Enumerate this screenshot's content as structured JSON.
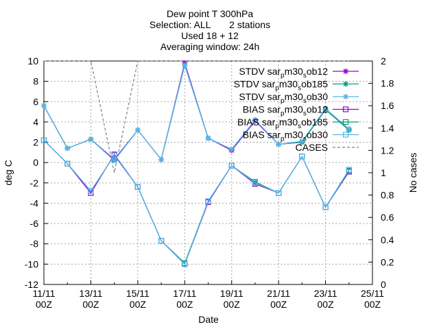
{
  "chart_data": {
    "type": "line",
    "title_lines": [
      "Dew point T 300hPa",
      "Selection: ALL       2 stations",
      "Used 18 + 12",
      "Averaging window: 24h"
    ],
    "xlabel": "Date",
    "ylabel": "deg C",
    "y2label": "No cases",
    "xlim": [
      0,
      14
    ],
    "ylim": [
      -12,
      10
    ],
    "y2lim": [
      0,
      2
    ],
    "grid": true,
    "legend_position": "top-right",
    "x_tick_labels": [
      {
        "at": 0,
        "line1": "11/11",
        "line2": "00Z"
      },
      {
        "at": 2,
        "line1": "13/11",
        "line2": "00Z"
      },
      {
        "at": 4,
        "line1": "15/11",
        "line2": "00Z"
      },
      {
        "at": 6,
        "line1": "17/11",
        "line2": "00Z"
      },
      {
        "at": 8,
        "line1": "19/11",
        "line2": "00Z"
      },
      {
        "at": 10,
        "line1": "21/11",
        "line2": "00Z"
      },
      {
        "at": 12,
        "line1": "23/11",
        "line2": "00Z"
      },
      {
        "at": 14,
        "line1": "25/11",
        "line2": "00Z"
      }
    ],
    "y_ticks": [
      10,
      8,
      6,
      4,
      2,
      0,
      -2,
      -4,
      -6,
      -8,
      -10,
      -12
    ],
    "y2_ticks": [
      "2",
      "1.8",
      "1.6",
      "1.4",
      "1.2",
      "1",
      "0.8",
      "0.6",
      "0.4",
      "0.2",
      "0"
    ],
    "x": [
      0,
      1,
      2,
      3,
      4,
      5,
      6,
      7,
      8,
      9,
      10,
      11,
      12,
      13
    ],
    "series": [
      {
        "name": "STDV sar_p m30_s ob12",
        "label_parts": [
          "STDV sar",
          "p",
          "m30",
          "s",
          "ob12"
        ],
        "color": "#9400d3",
        "marker": "asterisk",
        "dash": false,
        "values": [
          5.6,
          1.4,
          2.3,
          0.3,
          3.2,
          0.3,
          9.8,
          2.4,
          1.2,
          4.1,
          1.8,
          2.0,
          5.3,
          3.3
        ]
      },
      {
        "name": "STDV sar_p m30_s ob185",
        "label_parts": [
          "STDV sar",
          "p",
          "m30",
          "s",
          "ob185"
        ],
        "color": "#009e73",
        "marker": "asterisk",
        "dash": false,
        "values": [
          5.6,
          1.4,
          2.3,
          0.2,
          3.2,
          0.3,
          9.6,
          2.4,
          1.3,
          4.2,
          1.8,
          2.0,
          5.2,
          3.2
        ]
      },
      {
        "name": "STDV sar_p m30_s ob30",
        "label_parts": [
          "STDV sar",
          "p",
          "m30",
          "s",
          "ob30"
        ],
        "color": "#56b4e9",
        "marker": "asterisk",
        "dash": false,
        "values": [
          5.6,
          1.4,
          2.3,
          0.2,
          3.2,
          0.3,
          9.6,
          2.4,
          1.3,
          4.2,
          1.8,
          2.1,
          5.3,
          3.3
        ]
      },
      {
        "name": "BIAS sar_p m30_s ob12",
        "label_parts": [
          "BIAS sar",
          "p",
          "m30",
          "s",
          "ob12"
        ],
        "color": "#9400d3",
        "marker": "square",
        "dash": false,
        "values": [
          2.2,
          -0.1,
          -3.0,
          0.8,
          -2.4,
          -7.7,
          -10.0,
          -3.9,
          -0.3,
          -2.1,
          -3.0,
          0.6,
          -4.4,
          -0.9
        ]
      },
      {
        "name": "BIAS sar_p m30_s ob185",
        "label_parts": [
          "BIAS sar",
          "p",
          "m30",
          "s",
          "ob185"
        ],
        "color": "#009e73",
        "marker": "square",
        "dash": false,
        "values": [
          2.2,
          -0.1,
          -2.8,
          0.7,
          -2.4,
          -7.7,
          -9.9,
          -3.8,
          -0.3,
          -1.9,
          -3.0,
          0.6,
          -4.4,
          -0.8
        ]
      },
      {
        "name": "BIAS sar_p m30_s ob30",
        "label_parts": [
          "BIAS sar",
          "p",
          "m30",
          "s",
          "ob30"
        ],
        "color": "#56b4e9",
        "marker": "square",
        "dash": false,
        "values": [
          2.2,
          -0.1,
          -2.8,
          0.7,
          -2.4,
          -7.7,
          -10.0,
          -3.8,
          -0.3,
          -2.0,
          -3.0,
          0.6,
          -4.4,
          -0.7
        ]
      },
      {
        "name": "CASES",
        "label_parts": [
          "CASES"
        ],
        "color": "#808080",
        "marker": "none",
        "dash": true,
        "axis": "y2",
        "values": [
          2,
          2,
          2,
          1,
          2,
          2,
          2,
          2,
          2,
          2,
          2,
          2,
          2,
          2
        ]
      }
    ]
  }
}
